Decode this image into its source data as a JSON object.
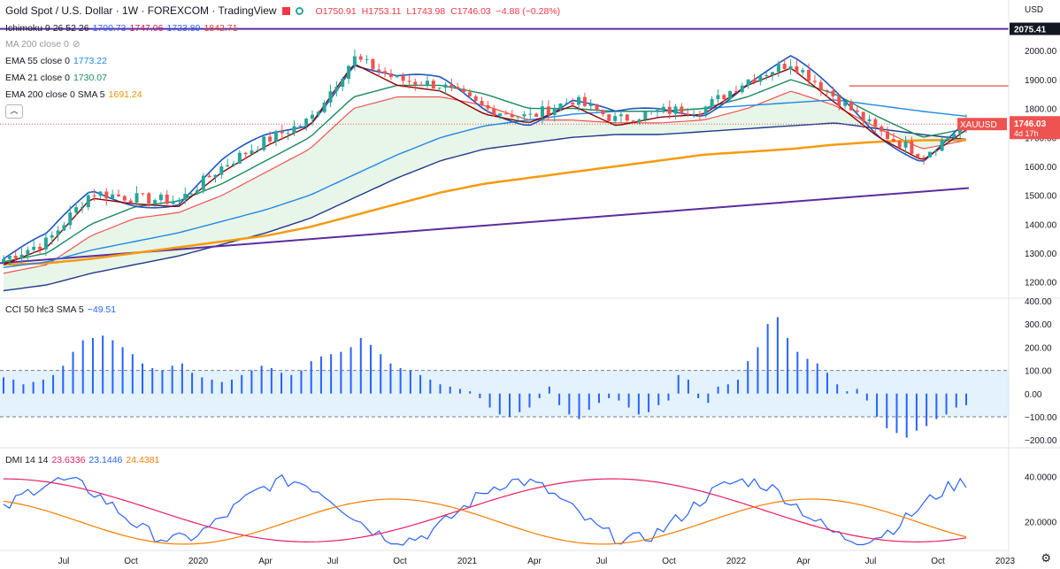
{
  "header": {
    "title": "Gold Spot / U.S. Dollar · 1W · FOREXCOM · TradingView",
    "open": "O1750.91",
    "high": "H1753.11",
    "low": "L1743.98",
    "close": "C1746.03",
    "change": "−4.88 (−0.28%)",
    "currency": "USD"
  },
  "legend": {
    "ichimoku": {
      "label": "Ichimoku 9 26 52 26",
      "v1": "1700.73",
      "v2": "1747.06",
      "v3": "1723.89",
      "v4": "1842.71"
    },
    "ma200": {
      "label": "MA 200 close 0"
    },
    "ema55": {
      "label": "EMA 55 close 0",
      "value": "1773.22"
    },
    "ema21": {
      "label": "EMA 21 close 0",
      "value": "1730.07"
    },
    "ema200": {
      "label": "EMA 200 close 0 SMA 5",
      "value": "1691.24"
    },
    "cci": {
      "label": "CCI 50 hlc3 SMA 5",
      "value": "−49.51"
    },
    "dmi": {
      "label": "DMI 14 14",
      "v1": "23.6336",
      "v2": "23.1446",
      "v3": "24.4381"
    }
  },
  "badges": {
    "high_line": "2075.41",
    "symbol": "XAUUSD",
    "price": "1746.03",
    "countdown": "4d 17h"
  },
  "colors": {
    "up": "#26a69a",
    "down": "#ef5350",
    "ichimoku_base": "#8b0000",
    "ichimoku_conv": "#1e56c0",
    "cloud_up": "#e8f5e9",
    "cloud_down": "#fde2e2",
    "ema55": "#1e88e5",
    "ema21": "#1b8a5a",
    "ema200": "#f59a0f",
    "trend": "#5b2c9f",
    "cci": "#2962ff",
    "dmi_plus": "#2962ff",
    "dmi_minus": "#e91e63",
    "adx": "#f57c00"
  },
  "chart_data": [
    {
      "type": "line",
      "name": "Gold Spot / U.S. Dollar weekly",
      "x_ticks": [
        "Jul",
        "Oct",
        "2020",
        "Apr",
        "Jul",
        "Oct",
        "2021",
        "Apr",
        "Jul",
        "Oct",
        "2022",
        "Apr",
        "Jul",
        "Oct",
        "2023"
      ],
      "y_ticks": [
        1200,
        1300,
        1400,
        1500,
        1600,
        1700,
        1800,
        1900,
        2000,
        2100
      ],
      "ylim": [
        1150,
        2120
      ],
      "x": [
        "2019-04",
        "2019-06",
        "2019-08",
        "2019-10",
        "2019-12",
        "2020-02",
        "2020-04",
        "2020-06",
        "2020-08",
        "2020-10",
        "2020-12",
        "2021-02",
        "2021-04",
        "2021-06",
        "2021-08",
        "2021-10",
        "2021-12",
        "2022-02",
        "2022-04",
        "2022-06",
        "2022-08",
        "2022-10",
        "2022-11"
      ],
      "series": [
        {
          "name": "close",
          "values": [
            1280,
            1340,
            1510,
            1490,
            1480,
            1600,
            1690,
            1760,
            1975,
            1900,
            1880,
            1800,
            1770,
            1830,
            1760,
            1790,
            1800,
            1900,
            1960,
            1840,
            1720,
            1640,
            1746
          ]
        },
        {
          "name": "EMA 55",
          "values": [
            1250,
            1270,
            1310,
            1340,
            1370,
            1410,
            1450,
            1500,
            1570,
            1640,
            1700,
            1740,
            1760,
            1780,
            1790,
            1790,
            1800,
            1810,
            1820,
            1830,
            1810,
            1790,
            1773
          ]
        },
        {
          "name": "EMA 21",
          "values": [
            1270,
            1300,
            1400,
            1460,
            1480,
            1540,
            1620,
            1700,
            1840,
            1880,
            1880,
            1850,
            1800,
            1800,
            1790,
            1790,
            1800,
            1840,
            1900,
            1850,
            1770,
            1700,
            1730
          ]
        },
        {
          "name": "EMA 200",
          "values": [
            1260,
            1265,
            1280,
            1300,
            1320,
            1340,
            1360,
            1390,
            1430,
            1470,
            1510,
            1540,
            1560,
            1580,
            1600,
            1620,
            1640,
            1650,
            1660,
            1675,
            1685,
            1690,
            1691
          ]
        }
      ],
      "annotations": {
        "high_line": 2075.41,
        "last_price": 1746.03
      }
    },
    {
      "type": "bar",
      "name": "CCI 50 hlc3 SMA 5",
      "y_ticks": [
        -200,
        -100,
        0,
        100,
        200,
        300,
        400
      ],
      "ylim": [
        -230,
        400
      ],
      "bands": [
        -100,
        100
      ],
      "values": [
        70,
        60,
        40,
        50,
        60,
        80,
        120,
        180,
        230,
        240,
        250,
        230,
        200,
        170,
        130,
        110,
        100,
        120,
        130,
        90,
        70,
        60,
        50,
        60,
        80,
        100,
        120,
        110,
        90,
        80,
        100,
        140,
        160,
        170,
        180,
        200,
        240,
        210,
        170,
        130,
        110,
        100,
        80,
        60,
        40,
        30,
        20,
        10,
        -20,
        -60,
        -90,
        -100,
        -80,
        -60,
        -20,
        30,
        -50,
        -90,
        -110,
        -70,
        -40,
        -20,
        -30,
        -60,
        -90,
        -80,
        -50,
        -30,
        80,
        60,
        -20,
        -40,
        30,
        40,
        60,
        140,
        200,
        300,
        330,
        240,
        180,
        150,
        130,
        90,
        40,
        10,
        20,
        -30,
        -100,
        -150,
        -170,
        -190,
        -160,
        -140,
        -110,
        -90,
        -60,
        -50
      ]
    },
    {
      "type": "line",
      "name": "DMI 14 14",
      "y_ticks": [
        20,
        40
      ],
      "ylim": [
        8,
        52
      ]
    }
  ]
}
